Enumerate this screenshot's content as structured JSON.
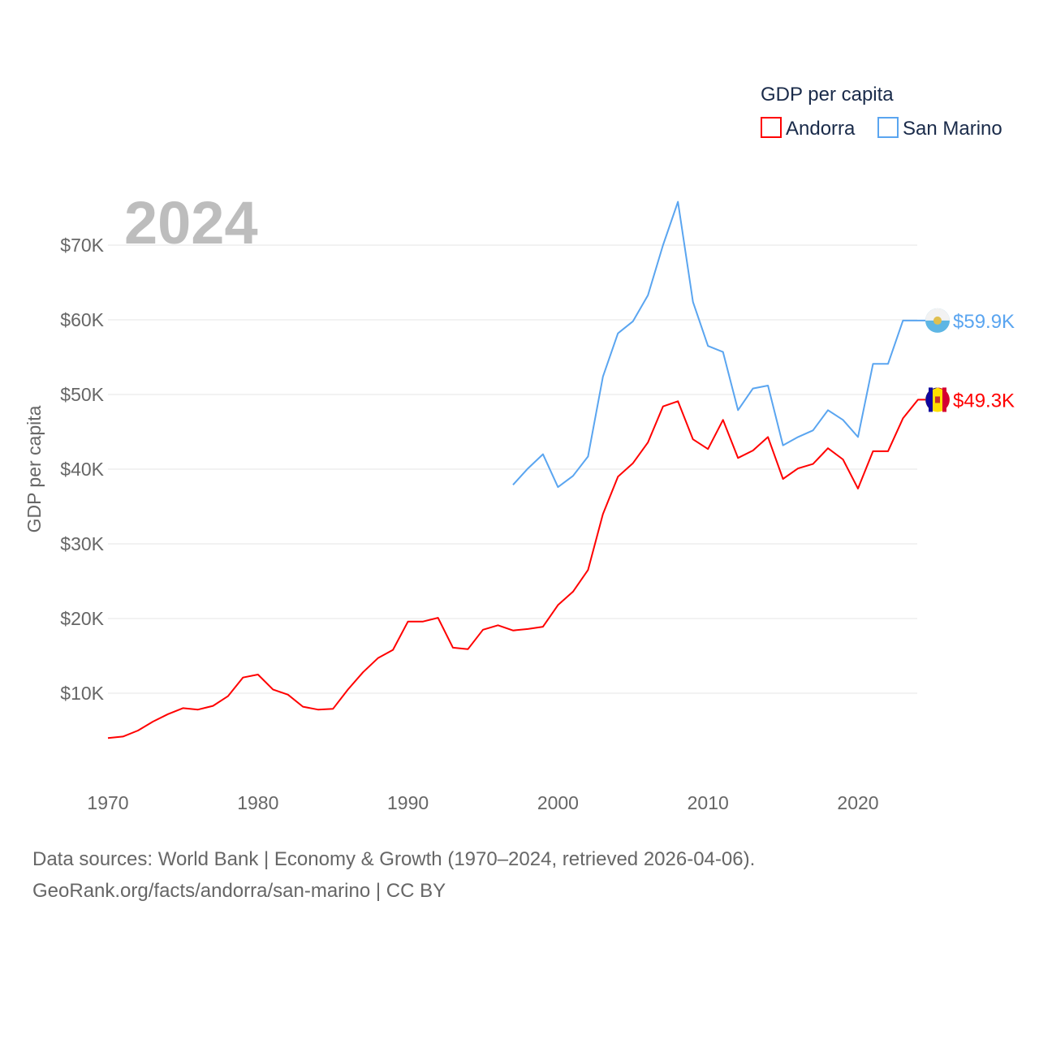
{
  "chart_data": {
    "type": "line",
    "title": "2024",
    "ylabel": "GDP per capita",
    "xlabel": "",
    "ylim": [
      0,
      75000
    ],
    "xlim": [
      1970,
      2024
    ],
    "y_ticks": [
      10000,
      20000,
      30000,
      40000,
      50000,
      60000,
      70000
    ],
    "y_tick_labels": [
      "$10K",
      "$20K",
      "$30K",
      "$40K",
      "$50K",
      "$60K",
      "$70K"
    ],
    "x_ticks": [
      1970,
      1980,
      1990,
      2000,
      2010,
      2020
    ],
    "x_tick_labels": [
      "1970",
      "1980",
      "1990",
      "2000",
      "2010",
      "2020"
    ],
    "grid": true,
    "legend": {
      "title": "GDP per capita",
      "placement": "top-right"
    },
    "series": [
      {
        "name": "Andorra",
        "color": "#ff0000",
        "end_label": "$49.3K",
        "start_year": 1970,
        "values": [
          4000,
          4200,
          5000,
          6200,
          7200,
          8000,
          7800,
          8300,
          9600,
          12100,
          12500,
          10500,
          9800,
          8200,
          7800,
          7900,
          10500,
          12800,
          14700,
          15800,
          19600,
          19600,
          20100,
          16100,
          15900,
          18500,
          19100,
          18400,
          18600,
          18900,
          21800,
          23600,
          26500,
          34000,
          39000,
          40800,
          43600,
          48400,
          49100,
          44000,
          42700,
          46600,
          41500,
          42500,
          44300,
          38700,
          40100,
          40700,
          42800,
          41300,
          37400,
          42400,
          42400,
          46800,
          49300
        ]
      },
      {
        "name": "San Marino",
        "color": "#5aa5f0",
        "end_label": "$59.9K",
        "start_year": 1997,
        "values": [
          37900,
          40100,
          42000,
          37600,
          39100,
          41700,
          52400,
          58200,
          59800,
          63300,
          70000,
          75800,
          62400,
          56500,
          55700,
          47900,
          50800,
          51200,
          43200,
          44300,
          45200,
          47900,
          46600,
          44300,
          54100,
          54100,
          59900,
          59900
        ]
      }
    ]
  },
  "footer": {
    "line1": "Data sources: World Bank | Economy & Growth (1970–2024, retrieved 2026-04-06).",
    "line2": "GeoRank.org/facts/andorra/san-marino | CC BY"
  }
}
